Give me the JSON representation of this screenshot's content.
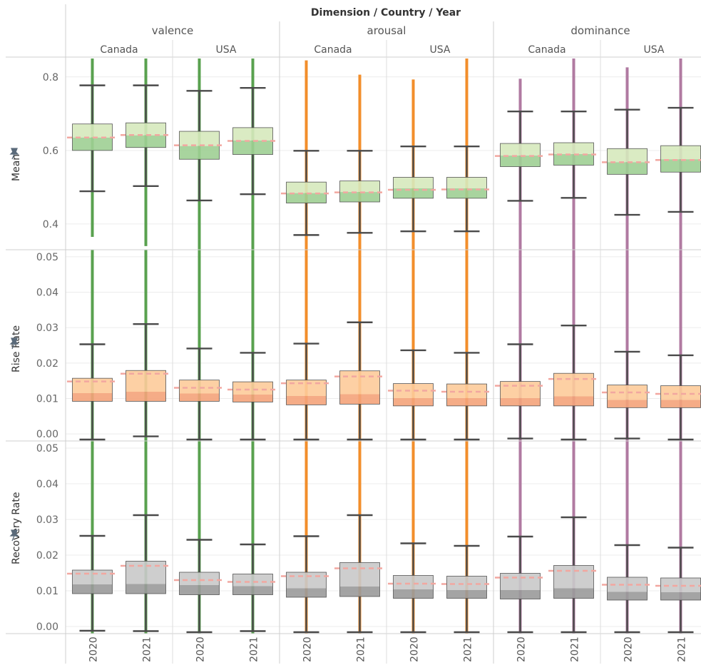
{
  "header": {
    "title": "Dimension / Country / Year",
    "dimensions": [
      "valence",
      "arousal",
      "dominance"
    ],
    "countries": [
      "Canada",
      "USA"
    ],
    "years": [
      "2020",
      "2021"
    ]
  },
  "row_labels": [
    "Mean",
    "Rise Rate",
    "Recovery Rate"
  ],
  "colors": {
    "valence": "#59a14f",
    "arousal": "#f28e2b",
    "dominance": "#b07aa1",
    "whisker": "#4a4a4a",
    "reference_line": "#f2a7a0",
    "mean_box_light": "#d6e9bd",
    "mean_box_dark": "#9fcf94",
    "rise_box_light": "#fdcb9a",
    "rise_box_dark": "#f4a37a",
    "recovery_box_light": "#c9c9c9",
    "recovery_box_dark": "#9a9a9a",
    "pin": "#5a6a7a"
  },
  "chart_data": {
    "type": "boxplot",
    "title": "Dimension / Country / Year",
    "column_order": [
      [
        "valence",
        "Canada",
        "2020"
      ],
      [
        "valence",
        "Canada",
        "2021"
      ],
      [
        "valence",
        "USA",
        "2020"
      ],
      [
        "valence",
        "USA",
        "2021"
      ],
      [
        "arousal",
        "Canada",
        "2020"
      ],
      [
        "arousal",
        "Canada",
        "2021"
      ],
      [
        "arousal",
        "USA",
        "2020"
      ],
      [
        "arousal",
        "USA",
        "2021"
      ],
      [
        "dominance",
        "Canada",
        "2020"
      ],
      [
        "dominance",
        "Canada",
        "2021"
      ],
      [
        "dominance",
        "USA",
        "2020"
      ],
      [
        "dominance",
        "USA",
        "2021"
      ]
    ],
    "rows": [
      {
        "name": "Mean",
        "ylim": [
          0.33,
          0.85
        ],
        "ticks": [
          0.4,
          0.6,
          0.8
        ],
        "tick_labels": [
          "0.4",
          "0.6",
          "0.8"
        ],
        "boxes": [
          {
            "whisker_low": 0.489,
            "q1": 0.6,
            "median": 0.635,
            "q3": 0.672,
            "whisker_high": 0.777,
            "ref": 0.635,
            "dot_low": 0.365,
            "dot_high": 0.85
          },
          {
            "whisker_low": 0.503,
            "q1": 0.608,
            "median": 0.641,
            "q3": 0.675,
            "whisker_high": 0.777,
            "ref": 0.642,
            "dot_low": 0.34,
            "dot_high": 0.85
          },
          {
            "whisker_low": 0.464,
            "q1": 0.576,
            "median": 0.612,
            "q3": 0.652,
            "whisker_high": 0.762,
            "ref": 0.614,
            "dot_low": 0.33,
            "dot_high": 0.85
          },
          {
            "whisker_low": 0.481,
            "q1": 0.589,
            "median": 0.627,
            "q3": 0.662,
            "whisker_high": 0.77,
            "ref": 0.626,
            "dot_low": 0.33,
            "dot_high": 0.85
          },
          {
            "whisker_low": 0.37,
            "q1": 0.457,
            "median": 0.484,
            "q3": 0.514,
            "whisker_high": 0.599,
            "ref": 0.483,
            "dot_low": 0.33,
            "dot_high": 0.845
          },
          {
            "whisker_low": 0.376,
            "q1": 0.46,
            "median": 0.487,
            "q3": 0.517,
            "whisker_high": 0.599,
            "ref": 0.486,
            "dot_low": 0.33,
            "dot_high": 0.806
          },
          {
            "whisker_low": 0.38,
            "q1": 0.47,
            "median": 0.497,
            "q3": 0.527,
            "whisker_high": 0.611,
            "ref": 0.493,
            "dot_low": 0.33,
            "dot_high": 0.793
          },
          {
            "whisker_low": 0.38,
            "q1": 0.47,
            "median": 0.497,
            "q3": 0.527,
            "whisker_high": 0.611,
            "ref": 0.494,
            "dot_low": 0.33,
            "dot_high": 0.85
          },
          {
            "whisker_low": 0.463,
            "q1": 0.556,
            "median": 0.586,
            "q3": 0.619,
            "whisker_high": 0.706,
            "ref": 0.585,
            "dot_low": 0.33,
            "dot_high": 0.795
          },
          {
            "whisker_low": 0.471,
            "q1": 0.56,
            "median": 0.59,
            "q3": 0.621,
            "whisker_high": 0.706,
            "ref": 0.589,
            "dot_low": 0.33,
            "dot_high": 0.85
          },
          {
            "whisker_low": 0.425,
            "q1": 0.535,
            "median": 0.568,
            "q3": 0.605,
            "whisker_high": 0.711,
            "ref": 0.568,
            "dot_low": 0.33,
            "dot_high": 0.826
          },
          {
            "whisker_low": 0.433,
            "q1": 0.541,
            "median": 0.576,
            "q3": 0.613,
            "whisker_high": 0.716,
            "ref": 0.574,
            "dot_low": 0.33,
            "dot_high": 0.85
          }
        ]
      },
      {
        "name": "Rise Rate",
        "ylim": [
          -0.002,
          0.052
        ],
        "ticks": [
          0.0,
          0.01,
          0.02,
          0.03,
          0.04,
          0.05
        ],
        "tick_labels": [
          "0.00",
          "0.01",
          "0.02",
          "0.03",
          "0.04",
          "0.05"
        ],
        "boxes": [
          {
            "whisker_low": -0.002,
            "q1": 0.0092,
            "median": 0.0115,
            "q3": 0.0157,
            "whisker_high": 0.0253,
            "ref": 0.0148
          },
          {
            "whisker_low": -0.0007,
            "q1": 0.0092,
            "median": 0.0119,
            "q3": 0.0179,
            "whisker_high": 0.031,
            "ref": 0.017
          },
          {
            "whisker_low": -0.0016,
            "q1": 0.0092,
            "median": 0.0114,
            "q3": 0.0152,
            "whisker_high": 0.0241,
            "ref": 0.013
          },
          {
            "whisker_low": -0.0016,
            "q1": 0.009,
            "median": 0.0111,
            "q3": 0.0147,
            "whisker_high": 0.0229,
            "ref": 0.0125
          },
          {
            "whisker_low": -0.002,
            "q1": 0.0082,
            "median": 0.0107,
            "q3": 0.0152,
            "whisker_high": 0.0255,
            "ref": 0.0143
          },
          {
            "whisker_low": -0.0018,
            "q1": 0.0084,
            "median": 0.0112,
            "q3": 0.0178,
            "whisker_high": 0.0315,
            "ref": 0.0162
          },
          {
            "whisker_low": -0.002,
            "q1": 0.0079,
            "median": 0.0101,
            "q3": 0.0142,
            "whisker_high": 0.0236,
            "ref": 0.0122
          },
          {
            "whisker_low": -0.002,
            "q1": 0.0079,
            "median": 0.0101,
            "q3": 0.0141,
            "whisker_high": 0.0229,
            "ref": 0.0119
          },
          {
            "whisker_low": -0.0013,
            "q1": 0.0079,
            "median": 0.0101,
            "q3": 0.0148,
            "whisker_high": 0.0253,
            "ref": 0.0136
          },
          {
            "whisker_low": -0.002,
            "q1": 0.0079,
            "median": 0.0106,
            "q3": 0.0171,
            "whisker_high": 0.0306,
            "ref": 0.0155
          },
          {
            "whisker_low": -0.0013,
            "q1": 0.0074,
            "median": 0.0096,
            "q3": 0.0138,
            "whisker_high": 0.0232,
            "ref": 0.0117
          },
          {
            "whisker_low": -0.0016,
            "q1": 0.0074,
            "median": 0.0096,
            "q3": 0.0136,
            "whisker_high": 0.0222,
            "ref": 0.0113
          }
        ]
      },
      {
        "name": "Recovery Rate",
        "ylim": [
          -0.002,
          0.052
        ],
        "ticks": [
          0.0,
          0.01,
          0.02,
          0.03,
          0.04,
          0.05
        ],
        "tick_labels": [
          "0.00",
          "0.01",
          "0.02",
          "0.03",
          "0.04",
          "0.05"
        ],
        "boxes": [
          {
            "whisker_low": -0.0012,
            "q1": 0.0092,
            "median": 0.0118,
            "q3": 0.0158,
            "whisker_high": 0.0254,
            "ref": 0.0148
          },
          {
            "whisker_low": -0.0013,
            "q1": 0.0092,
            "median": 0.0119,
            "q3": 0.0183,
            "whisker_high": 0.0312,
            "ref": 0.017
          },
          {
            "whisker_low": -0.0016,
            "q1": 0.0089,
            "median": 0.0116,
            "q3": 0.0152,
            "whisker_high": 0.0243,
            "ref": 0.013
          },
          {
            "whisker_low": -0.0013,
            "q1": 0.0089,
            "median": 0.0113,
            "q3": 0.0147,
            "whisker_high": 0.023,
            "ref": 0.0125
          },
          {
            "whisker_low": -0.0016,
            "q1": 0.0082,
            "median": 0.0107,
            "q3": 0.0152,
            "whisker_high": 0.0253,
            "ref": 0.0141
          },
          {
            "whisker_low": -0.0016,
            "q1": 0.0084,
            "median": 0.0112,
            "q3": 0.0179,
            "whisker_high": 0.0312,
            "ref": 0.0163
          },
          {
            "whisker_low": -0.0016,
            "q1": 0.0079,
            "median": 0.0104,
            "q3": 0.0143,
            "whisker_high": 0.0233,
            "ref": 0.012
          },
          {
            "whisker_low": -0.0016,
            "q1": 0.0079,
            "median": 0.0102,
            "q3": 0.0141,
            "whisker_high": 0.0226,
            "ref": 0.0119
          },
          {
            "whisker_low": -0.0016,
            "q1": 0.0077,
            "median": 0.0102,
            "q3": 0.0149,
            "whisker_high": 0.0252,
            "ref": 0.0137
          },
          {
            "whisker_low": -0.0016,
            "q1": 0.0079,
            "median": 0.0107,
            "q3": 0.0171,
            "whisker_high": 0.0306,
            "ref": 0.0156
          },
          {
            "whisker_low": -0.0016,
            "q1": 0.0074,
            "median": 0.0097,
            "q3": 0.0138,
            "whisker_high": 0.0228,
            "ref": 0.0117
          },
          {
            "whisker_low": -0.0016,
            "q1": 0.0074,
            "median": 0.0096,
            "q3": 0.0136,
            "whisker_high": 0.0221,
            "ref": 0.0114
          }
        ]
      }
    ],
    "grid": true,
    "legend": "none"
  }
}
